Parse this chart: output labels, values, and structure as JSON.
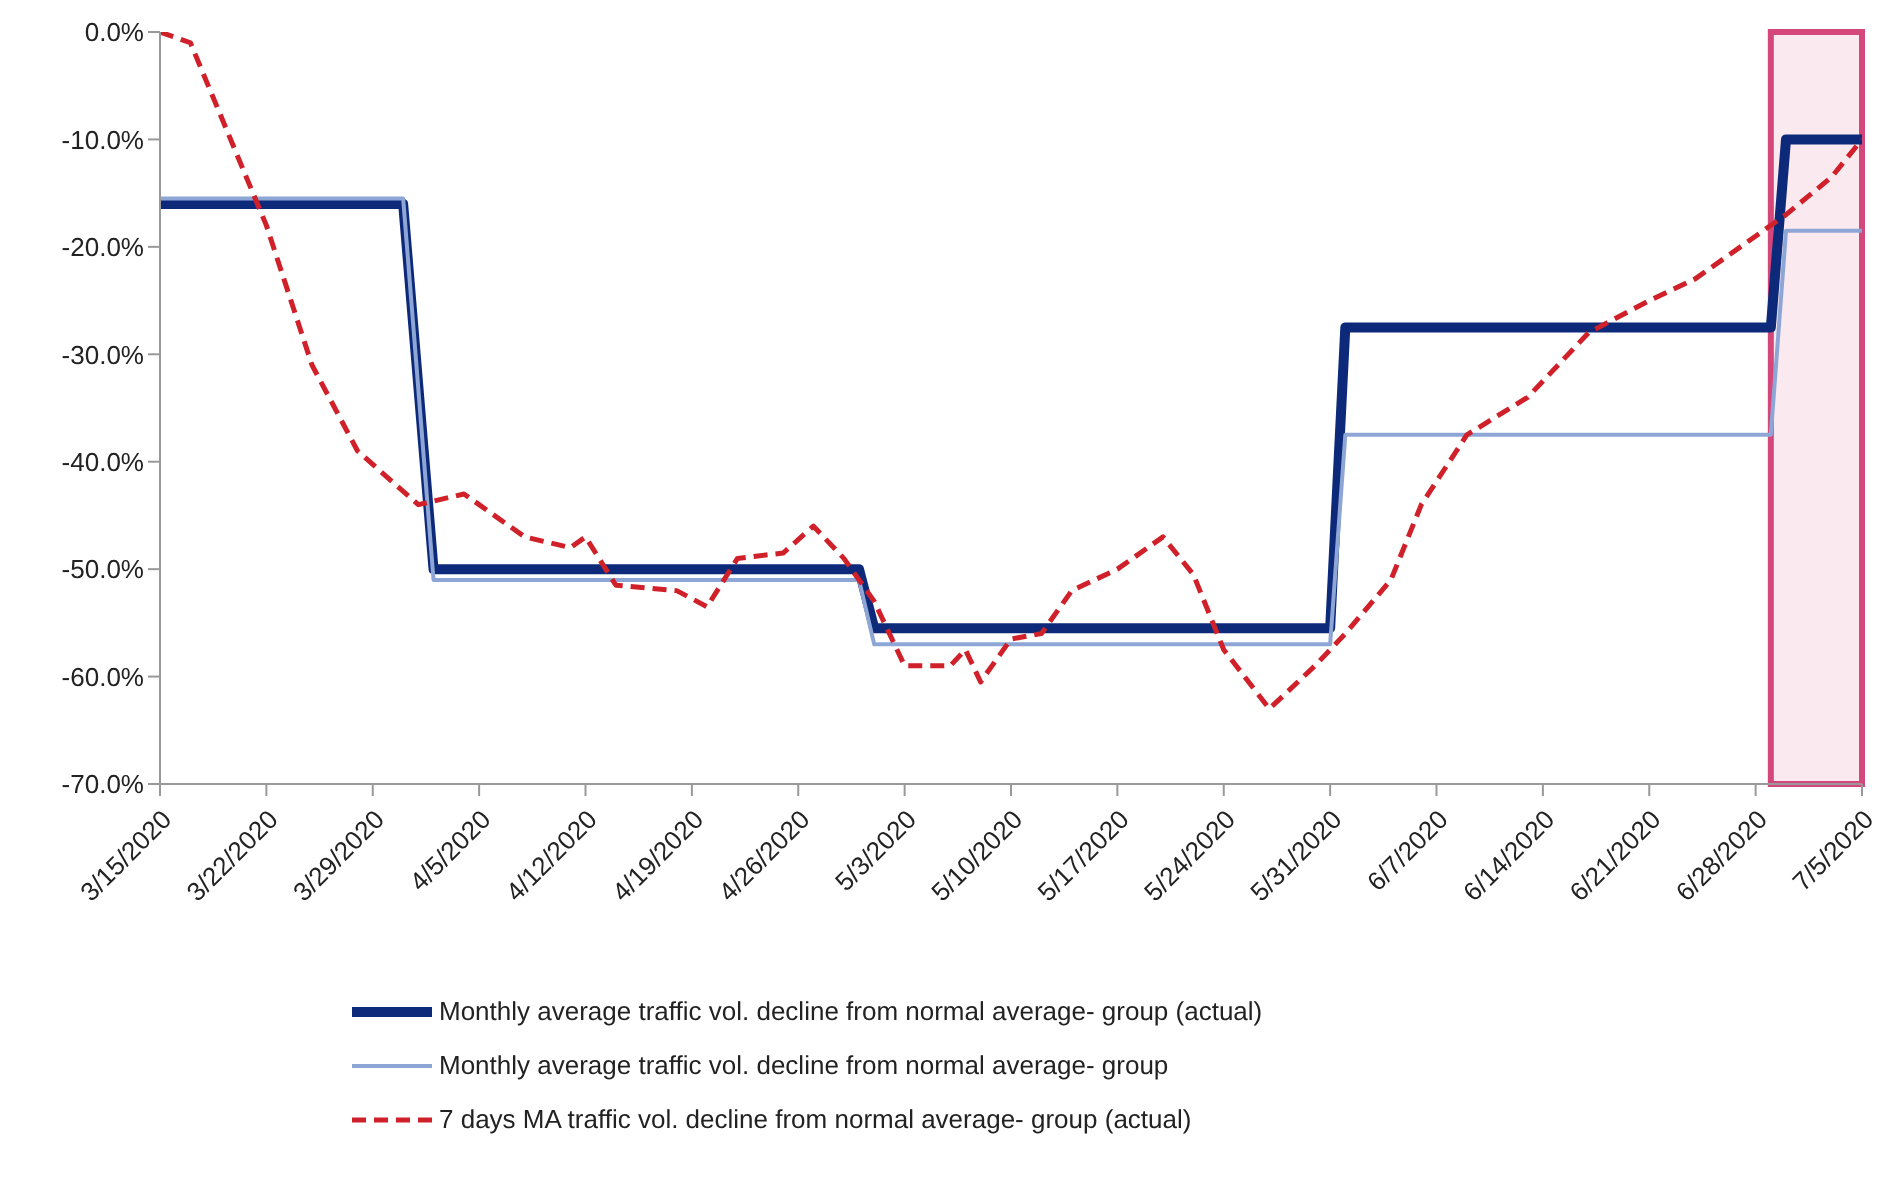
{
  "chart_data": {
    "type": "line",
    "xlim": [
      "2020-03-15",
      "2020-07-05"
    ],
    "xticks": [
      {
        "value": "2020-03-15",
        "label": "3/15/2020"
      },
      {
        "value": "2020-03-22",
        "label": "3/22/2020"
      },
      {
        "value": "2020-03-29",
        "label": "3/29/2020"
      },
      {
        "value": "2020-04-05",
        "label": "4/5/2020"
      },
      {
        "value": "2020-04-12",
        "label": "4/12/2020"
      },
      {
        "value": "2020-04-19",
        "label": "4/19/2020"
      },
      {
        "value": "2020-04-26",
        "label": "4/26/2020"
      },
      {
        "value": "2020-05-03",
        "label": "5/3/2020"
      },
      {
        "value": "2020-05-10",
        "label": "5/10/2020"
      },
      {
        "value": "2020-05-17",
        "label": "5/17/2020"
      },
      {
        "value": "2020-05-24",
        "label": "5/24/2020"
      },
      {
        "value": "2020-05-31",
        "label": "5/31/2020"
      },
      {
        "value": "2020-06-07",
        "label": "6/7/2020"
      },
      {
        "value": "2020-06-14",
        "label": "6/14/2020"
      },
      {
        "value": "2020-06-21",
        "label": "6/21/2020"
      },
      {
        "value": "2020-06-28",
        "label": "6/28/2020"
      },
      {
        "value": "2020-07-05",
        "label": "7/5/2020"
      }
    ],
    "ylim": [
      -70,
      0
    ],
    "yticks": [
      {
        "value": 0,
        "label": "0.0%"
      },
      {
        "value": -10,
        "label": "-10.0%"
      },
      {
        "value": -20,
        "label": "-20.0%"
      },
      {
        "value": -30,
        "label": "-30.0%"
      },
      {
        "value": -40,
        "label": "-40.0%"
      },
      {
        "value": -50,
        "label": "-50.0%"
      },
      {
        "value": -60,
        "label": "-60.0%"
      },
      {
        "value": -70,
        "label": "-70.0%"
      }
    ],
    "grid": false,
    "legend": "bottom",
    "marker": "none",
    "bands": [
      {
        "axis": "x",
        "from": "2020-06-29",
        "to": "2020-07-05",
        "color": "#d4477a"
      }
    ],
    "series": [
      {
        "name": "Monthly average traffic vol. decline from normal average- group (actual)",
        "color": "#0d2a7a",
        "line_style": "solid",
        "x": [
          "2020-03-15",
          "2020-03-31",
          "2020-04-02",
          "2020-04-30",
          "2020-05-01",
          "2020-05-31",
          "2020-06-01",
          "2020-06-29",
          "2020-06-30",
          "2020-07-05"
        ],
        "values": [
          -16,
          -16,
          -50,
          -50,
          -55.5,
          -55.5,
          -27.5,
          -27.5,
          -10,
          -10
        ]
      },
      {
        "name": "Monthly average traffic vol. decline from normal average- group",
        "color": "#8ea6d6",
        "line_style": "solid",
        "x": [
          "2020-03-15",
          "2020-03-31",
          "2020-04-02",
          "2020-04-30",
          "2020-05-01",
          "2020-05-31",
          "2020-06-01",
          "2020-06-29",
          "2020-06-30",
          "2020-07-05"
        ],
        "values": [
          -15.5,
          -15.5,
          -51,
          -51,
          -57,
          -57,
          -37.5,
          -37.5,
          -18.5,
          -18.5
        ]
      },
      {
        "name": "7 days MA traffic vol. decline from normal average- group (actual)",
        "color": "#d0202a",
        "line_style": "dashed",
        "x": [
          "2020-03-15",
          "2020-03-17",
          "2020-03-22",
          "2020-03-25",
          "2020-03-28",
          "2020-04-01",
          "2020-04-04",
          "2020-04-08",
          "2020-04-11",
          "2020-04-12",
          "2020-04-14",
          "2020-04-18",
          "2020-04-20",
          "2020-04-22",
          "2020-04-25",
          "2020-04-27",
          "2020-04-29",
          "2020-05-01",
          "2020-05-03",
          "2020-05-06",
          "2020-05-07",
          "2020-05-08",
          "2020-05-10",
          "2020-05-12",
          "2020-05-14",
          "2020-05-17",
          "2020-05-20",
          "2020-05-22",
          "2020-05-24",
          "2020-05-27",
          "2020-05-30",
          "2020-06-01",
          "2020-06-04",
          "2020-06-06",
          "2020-06-09",
          "2020-06-13",
          "2020-06-17",
          "2020-06-21",
          "2020-06-24",
          "2020-06-27",
          "2020-06-30",
          "2020-07-03",
          "2020-07-05"
        ],
        "values": [
          0,
          -1,
          -18,
          -31,
          -39,
          -44,
          -43,
          -47,
          -48,
          -47,
          -51.5,
          -52,
          -53.5,
          -49,
          -48.5,
          -46,
          -49,
          -53,
          -59,
          -59,
          -57.5,
          -60.5,
          -56.5,
          -56,
          -52,
          -50,
          -47,
          -50.5,
          -57.5,
          -63,
          -59,
          -56,
          -51,
          -44,
          -37.5,
          -34,
          -28,
          -25,
          -23,
          -20,
          -17,
          -13.5,
          -10
        ]
      }
    ]
  }
}
